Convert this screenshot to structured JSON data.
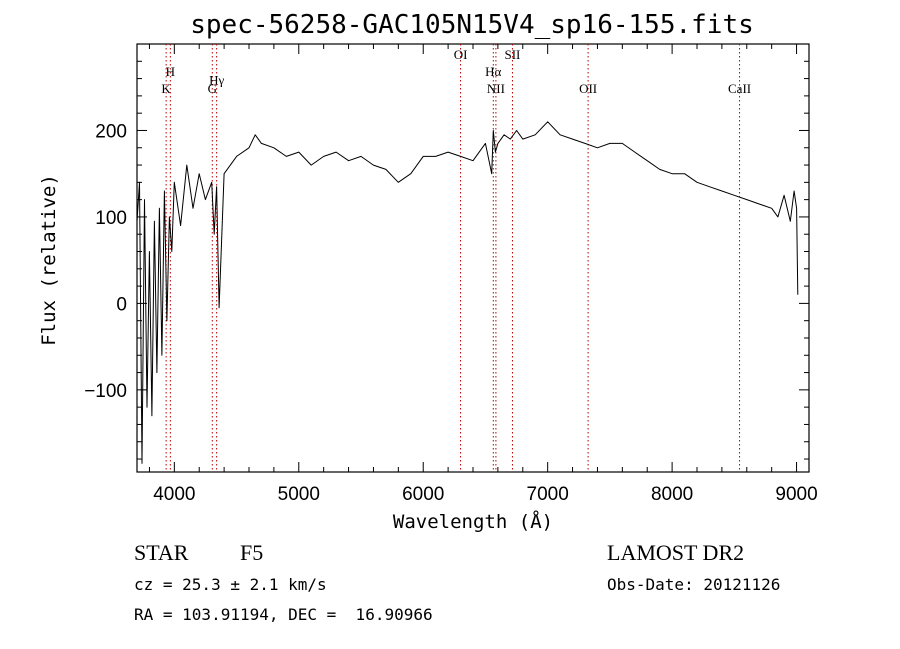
{
  "chart_data": {
    "type": "line",
    "title": "spec-56258-GAC105N15V4_sp16-155.fits",
    "xlabel": "Wavelength (Å)",
    "ylabel": "Flux (relative)",
    "xlim": [
      3700,
      9100
    ],
    "ylim": [
      -195,
      300
    ],
    "xticks": [
      4000,
      5000,
      6000,
      7000,
      8000,
      9000
    ],
    "yticks": [
      -100,
      0,
      100,
      200
    ],
    "ytick_labels": [
      "−100",
      "0",
      "100",
      "200"
    ],
    "series": [
      {
        "x": [
          3700,
          3720,
          3740,
          3760,
          3780,
          3800,
          3820,
          3840,
          3860,
          3880,
          3900,
          3920,
          3940,
          3960,
          3980,
          4000,
          4050,
          4100,
          4150,
          4200,
          4250,
          4300,
          4320,
          4340,
          4360,
          4400,
          4500,
          4600,
          4650,
          4700,
          4800,
          4900,
          5000,
          5100,
          5200,
          5300,
          5400,
          5500,
          5600,
          5700,
          5800,
          5900,
          6000,
          6100,
          6200,
          6300,
          6400,
          6500,
          6550,
          6563,
          6580,
          6600,
          6650,
          6700,
          6750,
          6800,
          6900,
          7000,
          7100,
          7200,
          7300,
          7400,
          7500,
          7600,
          7700,
          7800,
          7900,
          8000,
          8100,
          8200,
          8300,
          8400,
          8500,
          8600,
          8700,
          8800,
          8850,
          8900,
          8950,
          8980,
          9000,
          9010
        ],
        "y": [
          95,
          140,
          -185,
          120,
          -120,
          60,
          -130,
          95,
          -80,
          110,
          -60,
          130,
          -20,
          100,
          60,
          140,
          90,
          160,
          110,
          150,
          120,
          140,
          80,
          135,
          -5,
          150,
          170,
          180,
          195,
          185,
          180,
          170,
          175,
          160,
          170,
          175,
          165,
          170,
          160,
          155,
          140,
          150,
          170,
          170,
          175,
          170,
          165,
          185,
          150,
          200,
          175,
          185,
          195,
          190,
          200,
          190,
          195,
          210,
          195,
          190,
          185,
          180,
          185,
          185,
          175,
          165,
          155,
          150,
          150,
          140,
          135,
          130,
          125,
          120,
          115,
          110,
          100,
          125,
          95,
          130,
          110,
          10
        ]
      }
    ],
    "line_markers": [
      {
        "x": 3934,
        "label": "K",
        "row": 2
      },
      {
        "x": 3968,
        "label": "H",
        "row": 1
      },
      {
        "x": 4305,
        "label": "G",
        "row": 2
      },
      {
        "x": 4340,
        "label": "Hγ",
        "row": 1.5
      },
      {
        "x": 6300,
        "label": "OI",
        "row": 0
      },
      {
        "x": 6563,
        "label": "Hα",
        "row": 1
      },
      {
        "x": 6584,
        "label": "NII",
        "row": 2
      },
      {
        "x": 6717,
        "label": "SII",
        "row": 0
      },
      {
        "x": 7325,
        "label": "OII",
        "row": 2
      },
      {
        "x": 8542,
        "label": "CaII",
        "row": 2
      }
    ],
    "marker_color": "#c00000",
    "grid": false,
    "legend": "none"
  },
  "info": {
    "class_label": "STAR",
    "subclass": "F5",
    "survey": "LAMOST DR2",
    "redshift": "cz = 25.3 ± 2.1 km/s",
    "obs_date": "Obs-Date: 20121126",
    "coords": "RA = 103.91194, DEC =  16.90966"
  }
}
